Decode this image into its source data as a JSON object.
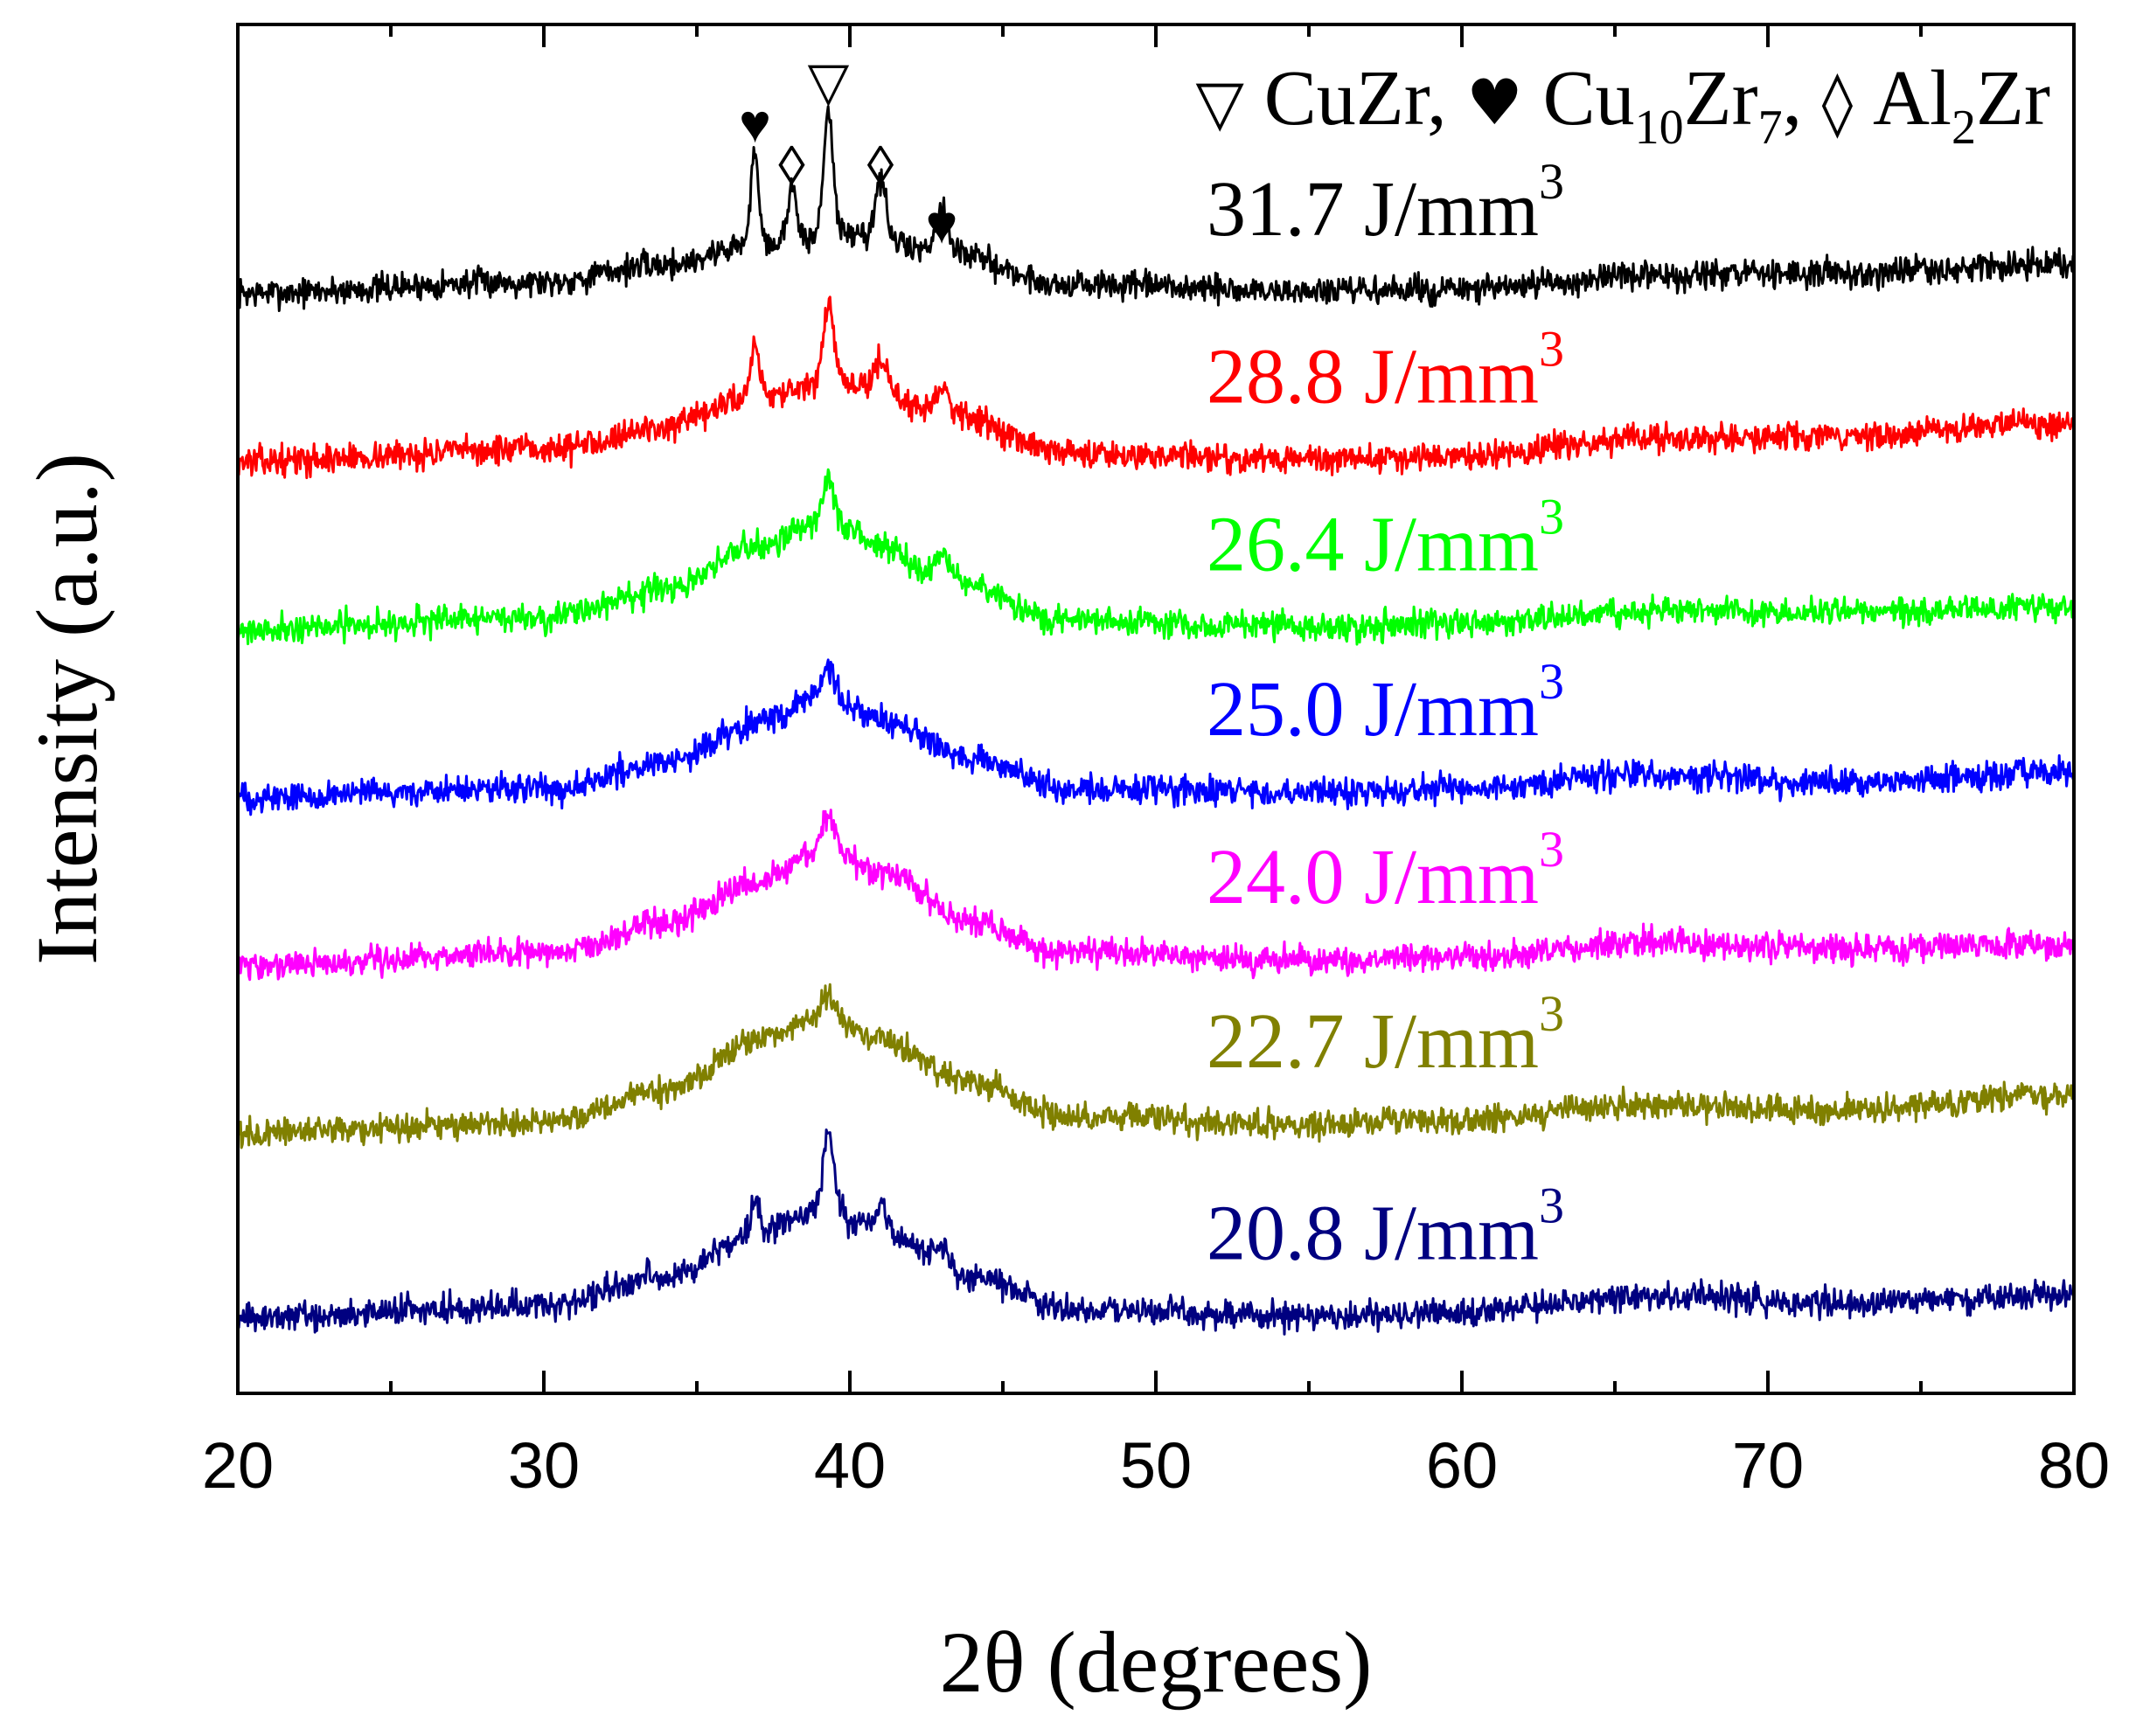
{
  "chart_data": {
    "type": "line",
    "title": "",
    "xlabel": "2θ (degrees)",
    "ylabel": "Intensity (a.u.)",
    "xlim": [
      20,
      80
    ],
    "xticks": [
      20,
      30,
      40,
      50,
      60,
      70,
      80
    ],
    "minor_tick_step": 5,
    "yticks_shown": false,
    "legend": {
      "position": "top-right",
      "entries": [
        {
          "symbol": "▽",
          "base": "CuZr",
          "sub": "",
          "base2": "",
          "sub2": "",
          "sep": ","
        },
        {
          "symbol": "♥",
          "base": "Cu",
          "sub": "10",
          "base2": "Zr",
          "sub2": "7",
          "sep": ","
        },
        {
          "symbol": "◊",
          "base": "Al",
          "sub": "2",
          "base2": "Zr",
          "sub2": "",
          "sep": ""
        }
      ]
    },
    "peak_markers": [
      {
        "symbol": "♥",
        "phase": "Cu10Zr7",
        "two_theta": 36.9,
        "intensity": 5.95
      },
      {
        "symbol": "◊",
        "phase": "Al2Zr",
        "two_theta": 38.1,
        "intensity": 5.7
      },
      {
        "symbol": "▽",
        "phase": "CuZr",
        "two_theta": 39.3,
        "intensity": 6.2
      },
      {
        "symbol": "◊",
        "phase": "Al2Zr",
        "two_theta": 41.0,
        "intensity": 5.7
      },
      {
        "symbol": "♥",
        "phase": "Cu10Zr7",
        "two_theta": 43.0,
        "intensity": 5.35
      }
    ],
    "series": [
      {
        "name": "31.7 J/mm3",
        "label_value": "31.7 J/mm",
        "label_exp": "3",
        "color": "#000000",
        "label_x": 57.5,
        "offset": 5.0,
        "noise": 0.06,
        "seed": 7,
        "baseline": [
          [
            20,
            0.05
          ],
          [
            30,
            0.12
          ],
          [
            34,
            0.22
          ],
          [
            37,
            0.35
          ],
          [
            40,
            0.4
          ],
          [
            43,
            0.3
          ],
          [
            47,
            0.1
          ],
          [
            55,
            0.06
          ],
          [
            60,
            0.07
          ],
          [
            66,
            0.15
          ],
          [
            72,
            0.17
          ],
          [
            80,
            0.22
          ]
        ],
        "peaks": [
          [
            36.9,
            0.55,
            0.18
          ],
          [
            38.1,
            0.35,
            0.18
          ],
          [
            39.3,
            0.75,
            0.22
          ],
          [
            41.0,
            0.35,
            0.25
          ],
          [
            43.0,
            0.25,
            0.3
          ]
        ]
      },
      {
        "name": "28.8 J/mm3",
        "label_value": "28.8 J/mm",
        "label_exp": "3",
        "color": "#ff0000",
        "label_x": 57.5,
        "offset": 4.0,
        "noise": 0.06,
        "seed": 13,
        "baseline": [
          [
            20,
            0.05
          ],
          [
            30,
            0.12
          ],
          [
            34,
            0.25
          ],
          [
            37,
            0.45
          ],
          [
            40,
            0.5
          ],
          [
            43,
            0.35
          ],
          [
            47,
            0.1
          ],
          [
            55,
            0.06
          ],
          [
            60,
            0.08
          ],
          [
            66,
            0.18
          ],
          [
            72,
            0.2
          ],
          [
            80,
            0.28
          ]
        ],
        "peaks": [
          [
            36.9,
            0.3,
            0.2
          ],
          [
            39.3,
            0.5,
            0.25
          ],
          [
            41.0,
            0.2,
            0.3
          ],
          [
            43.0,
            0.15,
            0.3
          ]
        ]
      },
      {
        "name": "26.4 J/mm3",
        "label_value": "26.4 J/mm",
        "label_exp": "3",
        "color": "#00ff00",
        "label_x": 57.5,
        "offset": 3.0,
        "noise": 0.06,
        "seed": 21,
        "baseline": [
          [
            20,
            0.05
          ],
          [
            30,
            0.12
          ],
          [
            34,
            0.28
          ],
          [
            37,
            0.55
          ],
          [
            39.2,
            0.7
          ],
          [
            41,
            0.55
          ],
          [
            43,
            0.35
          ],
          [
            47,
            0.1
          ],
          [
            55,
            0.06
          ],
          [
            60,
            0.08
          ],
          [
            66,
            0.16
          ],
          [
            72,
            0.15
          ],
          [
            80,
            0.18
          ]
        ],
        "peaks": [
          [
            39.3,
            0.25,
            0.25
          ],
          [
            43.0,
            0.15,
            0.3
          ]
        ]
      },
      {
        "name": "25.0 J/mm3",
        "label_value": "25.0 J/mm",
        "label_exp": "3",
        "color": "#0000ff",
        "label_x": 57.5,
        "offset": 2.0,
        "noise": 0.06,
        "seed": 33,
        "baseline": [
          [
            20,
            0.05
          ],
          [
            30,
            0.1
          ],
          [
            34,
            0.25
          ],
          [
            37,
            0.5
          ],
          [
            39.2,
            0.65
          ],
          [
            41,
            0.5
          ],
          [
            44,
            0.28
          ],
          [
            47,
            0.1
          ],
          [
            55,
            0.08
          ],
          [
            60,
            0.1
          ],
          [
            66,
            0.18
          ],
          [
            72,
            0.14
          ],
          [
            80,
            0.2
          ]
        ],
        "peaks": [
          [
            39.3,
            0.2,
            0.25
          ]
        ]
      },
      {
        "name": "24.0 J/mm3",
        "label_value": "24.0 J/mm",
        "label_exp": "3",
        "color": "#ff00ff",
        "label_x": 57.5,
        "offset": 1.0,
        "noise": 0.06,
        "seed": 45,
        "baseline": [
          [
            20,
            0.05
          ],
          [
            30,
            0.12
          ],
          [
            34,
            0.3
          ],
          [
            37,
            0.55
          ],
          [
            39.2,
            0.75
          ],
          [
            41,
            0.6
          ],
          [
            44,
            0.3
          ],
          [
            47,
            0.12
          ],
          [
            55,
            0.08
          ],
          [
            60,
            0.1
          ],
          [
            66,
            0.18
          ],
          [
            72,
            0.15
          ],
          [
            80,
            0.17
          ]
        ],
        "peaks": [
          [
            39.3,
            0.2,
            0.25
          ]
        ]
      },
      {
        "name": "22.7 J/mm3",
        "label_value": "22.7 J/mm",
        "label_exp": "3",
        "color": "#808000",
        "label_x": 57.5,
        "offset": 0.0,
        "noise": 0.06,
        "seed": 57,
        "baseline": [
          [
            20,
            0.05
          ],
          [
            30,
            0.12
          ],
          [
            34,
            0.3
          ],
          [
            37,
            0.6
          ],
          [
            39.2,
            0.75
          ],
          [
            41,
            0.6
          ],
          [
            44,
            0.35
          ],
          [
            47,
            0.15
          ],
          [
            55,
            0.1
          ],
          [
            60,
            0.12
          ],
          [
            66,
            0.22
          ],
          [
            72,
            0.18
          ],
          [
            80,
            0.27
          ]
        ],
        "peaks": [
          [
            39.3,
            0.1,
            0.3
          ]
        ]
      },
      {
        "name": "20.8 J/mm3",
        "label_value": "20.8 J/mm",
        "label_exp": "3",
        "color": "#000080",
        "label_x": 57.5,
        "offset": -1.1,
        "noise": 0.06,
        "seed": 69,
        "baseline": [
          [
            20,
            0.05
          ],
          [
            30,
            0.12
          ],
          [
            34,
            0.3
          ],
          [
            37,
            0.55
          ],
          [
            39.2,
            0.7
          ],
          [
            41,
            0.55
          ],
          [
            44,
            0.3
          ],
          [
            47,
            0.1
          ],
          [
            55,
            0.06
          ],
          [
            60,
            0.08
          ],
          [
            66,
            0.18
          ],
          [
            72,
            0.14
          ],
          [
            80,
            0.18
          ]
        ],
        "peaks": [
          [
            36.9,
            0.2,
            0.2
          ],
          [
            39.3,
            0.45,
            0.25
          ],
          [
            41.0,
            0.15,
            0.3
          ],
          [
            43.0,
            0.1,
            0.3
          ]
        ]
      }
    ]
  }
}
